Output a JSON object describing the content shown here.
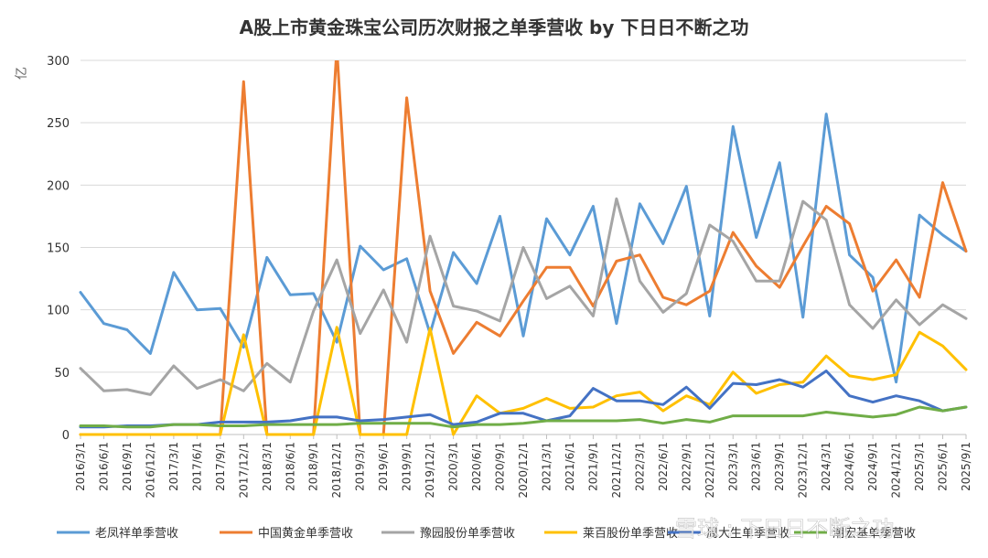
{
  "chart_data": {
    "type": "line",
    "title": "A股上市黄金珠宝公司历次财报之单季营收 by 下日日不断之功",
    "ylabel": "亿",
    "ylim": [
      0,
      300
    ],
    "yticks": [
      0,
      50,
      100,
      150,
      200,
      250,
      300
    ],
    "grid": true,
    "legend_position": "bottom",
    "x": [
      "2016/3/1",
      "2016/6/1",
      "2016/9/1",
      "2016/12/1",
      "2017/3/1",
      "2017/6/1",
      "2017/9/1",
      "2017/12/1",
      "2018/3/1",
      "2018/6/1",
      "2018/9/1",
      "2018/12/1",
      "2019/3/1",
      "2019/6/1",
      "2019/9/1",
      "2019/12/1",
      "2020/3/1",
      "2020/6/1",
      "2020/9/1",
      "2020/12/1",
      "2021/3/1",
      "2021/6/1",
      "2021/9/1",
      "2021/12/1",
      "2022/3/1",
      "2022/6/1",
      "2022/9/1",
      "2022/12/1",
      "2023/3/1",
      "2023/6/1",
      "2023/9/1",
      "2023/12/1",
      "2024/3/1",
      "2024/6/1",
      "2024/9/1",
      "2024/12/1",
      "2025/3/1",
      "2025/6/1",
      "2025/9/1"
    ],
    "series": [
      {
        "name": "老凤祥单季营收",
        "color": "#5b9bd5",
        "values": [
          114,
          89,
          84,
          65,
          130,
          100,
          101,
          70,
          142,
          112,
          113,
          74,
          151,
          132,
          141,
          81,
          146,
          121,
          175,
          79,
          173,
          144,
          183,
          89,
          185,
          153,
          199,
          95,
          247,
          158,
          218,
          94,
          257,
          144,
          126,
          42,
          176,
          160,
          147
        ]
      },
      {
        "name": "中国黄金单季营收",
        "color": "#ed7d31",
        "values": [
          0,
          0,
          0,
          0,
          0,
          0,
          0,
          283,
          0,
          0,
          0,
          310,
          0,
          0,
          270,
          115,
          65,
          90,
          79,
          107,
          134,
          134,
          103,
          139,
          144,
          110,
          104,
          115,
          162,
          135,
          118,
          151,
          183,
          169,
          115,
          140,
          110,
          202,
          147
        ]
      },
      {
        "name": "豫园股份单季营收",
        "color": "#a5a5a5",
        "values": [
          53,
          35,
          36,
          32,
          55,
          37,
          44,
          35,
          57,
          42,
          99,
          140,
          81,
          116,
          74,
          159,
          103,
          99,
          91,
          150,
          109,
          119,
          95,
          189,
          123,
          98,
          113,
          168,
          155,
          123,
          123,
          187,
          172,
          104,
          85,
          108,
          88,
          104,
          93
        ]
      },
      {
        "name": "莱百股份单季营收",
        "color": "#ffc000",
        "values": [
          0,
          0,
          0,
          0,
          0,
          0,
          0,
          80,
          0,
          0,
          0,
          86,
          0,
          0,
          0,
          85,
          0,
          31,
          17,
          21,
          29,
          21,
          22,
          31,
          34,
          19,
          31,
          24,
          50,
          33,
          40,
          42,
          63,
          47,
          44,
          48,
          82,
          71,
          52
        ]
      },
      {
        "name": "周大生单季营收",
        "color": "#4472c4",
        "values": [
          6,
          6,
          7,
          7,
          8,
          8,
          10,
          10,
          10,
          11,
          14,
          14,
          11,
          12,
          14,
          16,
          8,
          10,
          17,
          17,
          11,
          15,
          37,
          27,
          27,
          24,
          38,
          21,
          41,
          40,
          44,
          38,
          51,
          31,
          26,
          31,
          27,
          19,
          22
        ]
      },
      {
        "name": "潮宏基单季营收",
        "color": "#70ad47",
        "values": [
          7,
          7,
          6,
          6,
          8,
          8,
          7,
          7,
          8,
          8,
          8,
          8,
          9,
          9,
          9,
          9,
          6,
          8,
          8,
          9,
          11,
          11,
          11,
          11,
          12,
          9,
          12,
          10,
          15,
          15,
          15,
          15,
          18,
          16,
          14,
          16,
          22,
          19,
          22
        ]
      }
    ]
  },
  "watermark": "雪球 : 下日日不断之功"
}
